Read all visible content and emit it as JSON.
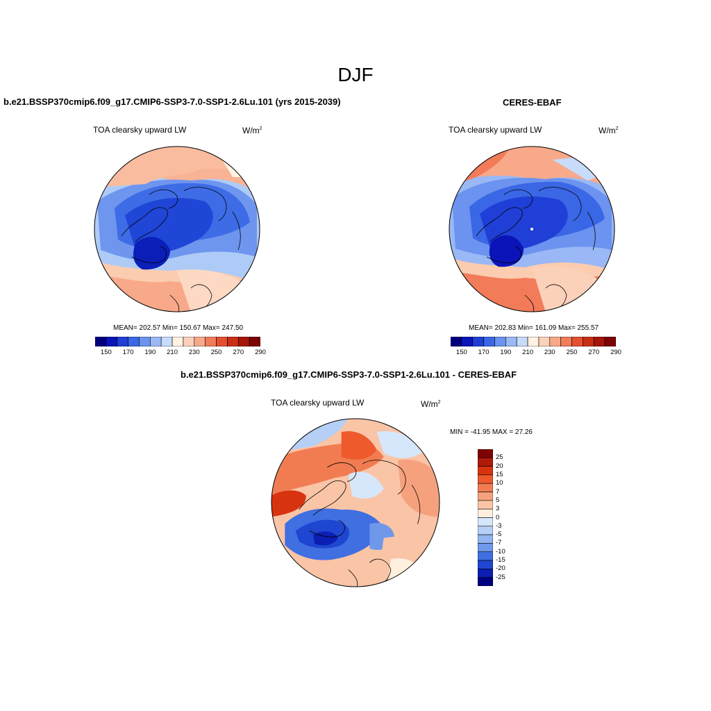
{
  "season": "DJF",
  "panels": [
    {
      "id": "model",
      "title": "b.e21.BSSP370cmip6.f09_g17.CMIP6-SSP3-7.0-SSP1-2.6Lu.101 (yrs 2015-2039)",
      "left_label": "TOA clearsky upward LW",
      "units": "W/m",
      "units_sup": "2",
      "stats": "MEAN= 202.57   Min= 150.67   Max= 247.50"
    },
    {
      "id": "obs",
      "title": "CERES-EBAF",
      "left_label": "TOA clearsky upward LW",
      "units": "W/m",
      "units_sup": "2",
      "stats": "MEAN= 202.83   Min= 161.09   Max= 255.57"
    },
    {
      "id": "diff",
      "title": "b.e21.BSSP370cmip6.f09_g17.CMIP6-SSP3-7.0-SSP1-2.6Lu.101 - CERES-EBAF",
      "left_label": "TOA clearsky upward LW",
      "units": "W/m",
      "units_sup": "2",
      "stats": "MIN = -41.95 MAX =  27.26"
    }
  ],
  "abs_colorbar": {
    "colors": [
      "#00007f",
      "#0a14b8",
      "#1f3fd6",
      "#3a67e6",
      "#6b93ef",
      "#9ab8f5",
      "#c7dbfa",
      "#fff2e3",
      "#fcd1ba",
      "#f8a98a",
      "#f27b59",
      "#e4502f",
      "#c92e15",
      "#a5150a",
      "#7d0404"
    ],
    "tick_labels": [
      "150",
      "170",
      "190",
      "210",
      "230",
      "250",
      "270",
      "290"
    ]
  },
  "diff_colorbar": {
    "colors": [
      "#7d0404",
      "#b01a08",
      "#d8330f",
      "#ee5a2c",
      "#f27c52",
      "#f6a17d",
      "#fac4a6",
      "#fff0de",
      "#d6e6fb",
      "#b6cff6",
      "#93b6f1",
      "#6f98ea",
      "#3f6fe1",
      "#1f46d0",
      "#0b1fb2",
      "#00007f"
    ],
    "tick_labels": [
      "25",
      "20",
      "15",
      "10",
      "7",
      "5",
      "3",
      "0",
      "-3",
      "-5",
      "-7",
      "-10",
      "-15",
      "-20",
      "-25"
    ]
  }
}
